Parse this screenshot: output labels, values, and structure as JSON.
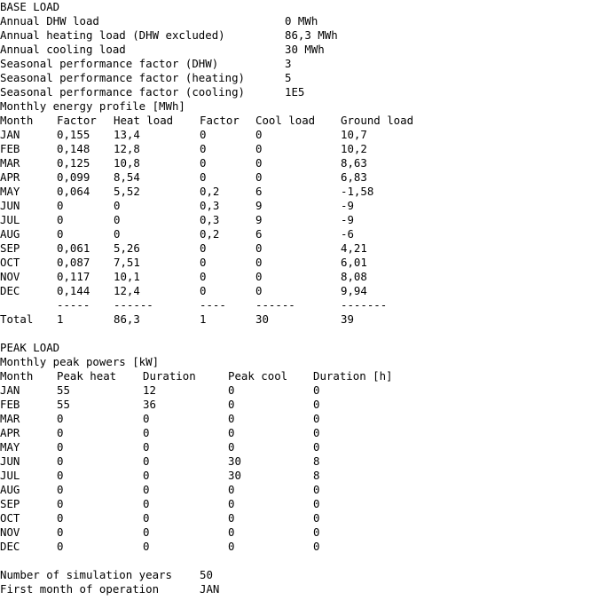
{
  "base_load": {
    "heading": "BASE LOAD",
    "params": [
      {
        "label": "Annual DHW load",
        "value": "0 MWh"
      },
      {
        "label": "Annual heating load (DHW excluded)",
        "value": "86,3 MWh"
      },
      {
        "label": "Annual cooling load",
        "value": "30 MWh"
      },
      {
        "label": "Seasonal performance factor (DHW)",
        "value": "3"
      },
      {
        "label": "Seasonal performance factor (heating)",
        "value": "5"
      },
      {
        "label": "Seasonal performance factor (cooling)",
        "value": "1E5"
      }
    ],
    "profile_title": "Monthly energy profile [MWh]",
    "columns": [
      "Month",
      "Factor",
      "Heat load",
      "Factor",
      "Cool load",
      "Ground load"
    ],
    "rows": [
      [
        "JAN",
        "0,155",
        "13,4",
        "0",
        "0",
        "10,7"
      ],
      [
        "FEB",
        "0,148",
        "12,8",
        "0",
        "0",
        "10,2"
      ],
      [
        "MAR",
        "0,125",
        "10,8",
        "0",
        "0",
        "8,63"
      ],
      [
        "APR",
        "0,099",
        "8,54",
        "0",
        "0",
        "6,83"
      ],
      [
        "MAY",
        "0,064",
        "5,52",
        "0,2",
        "6",
        "-1,58"
      ],
      [
        "JUN",
        "0",
        "0",
        "0,3",
        "9",
        "-9"
      ],
      [
        "JUL",
        "0",
        "0",
        "0,3",
        "9",
        "-9"
      ],
      [
        "AUG",
        "0",
        "0",
        "0,2",
        "6",
        "-6"
      ],
      [
        "SEP",
        "0,061",
        "5,26",
        "0",
        "0",
        "4,21"
      ],
      [
        "OCT",
        "0,087",
        "7,51",
        "0",
        "0",
        "6,01"
      ],
      [
        "NOV",
        "0,117",
        "10,1",
        "0",
        "0",
        "8,08"
      ],
      [
        "DEC",
        "0,144",
        "12,4",
        "0",
        "0",
        "9,94"
      ]
    ],
    "separators": [
      "-----",
      "------",
      "----",
      "------",
      "-------"
    ],
    "total": [
      "Total",
      "1",
      "86,3",
      "1",
      "30",
      "39"
    ]
  },
  "peak_load": {
    "heading": "PEAK LOAD",
    "subtitle": "Monthly peak powers [kW]",
    "columns": [
      "Month",
      "Peak heat",
      "Duration",
      "Peak cool",
      "Duration [h]"
    ],
    "rows": [
      [
        "JAN",
        "55",
        "12",
        "0",
        "0"
      ],
      [
        "FEB",
        "55",
        "36",
        "0",
        "0"
      ],
      [
        "MAR",
        "0",
        "0",
        "0",
        "0"
      ],
      [
        "APR",
        "0",
        "0",
        "0",
        "0"
      ],
      [
        "MAY",
        "0",
        "0",
        "0",
        "0"
      ],
      [
        "JUN",
        "0",
        "0",
        "30",
        "8"
      ],
      [
        "JUL",
        "0",
        "0",
        "30",
        "8"
      ],
      [
        "AUG",
        "0",
        "0",
        "0",
        "0"
      ],
      [
        "SEP",
        "0",
        "0",
        "0",
        "0"
      ],
      [
        "OCT",
        "0",
        "0",
        "0",
        "0"
      ],
      [
        "NOV",
        "0",
        "0",
        "0",
        "0"
      ],
      [
        "DEC",
        "0",
        "0",
        "0",
        "0"
      ]
    ]
  },
  "simulation": {
    "params": [
      {
        "label": "Number of simulation years",
        "value": "50"
      },
      {
        "label": "First month of operation",
        "value": "JAN"
      }
    ]
  }
}
